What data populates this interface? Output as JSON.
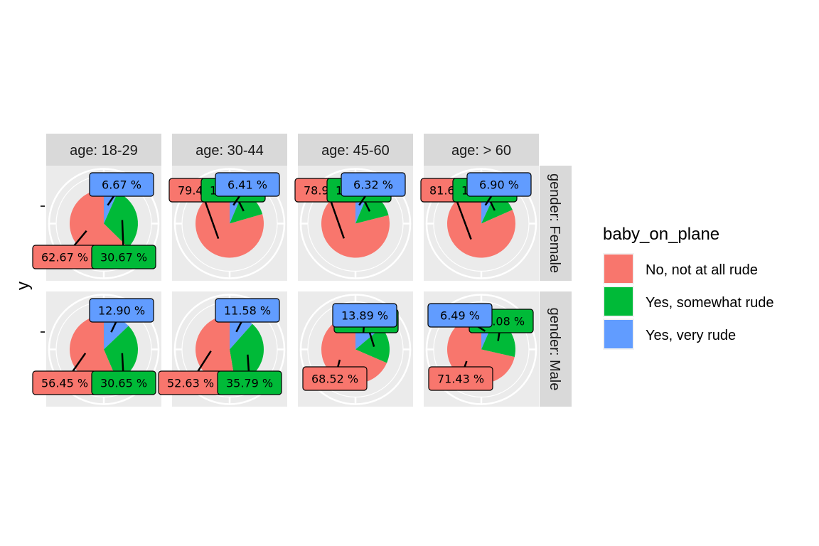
{
  "chart_data": {
    "type": "pie",
    "facet_col_values": [
      "age: 18-29",
      "age: 30-44",
      "age: 45-60",
      "age: > 60"
    ],
    "facet_row_values": [
      "gender: Female",
      "gender: Male"
    ],
    "y_axis_label": "y",
    "legend": {
      "title": "baby_on_plane",
      "entries": [
        "No, not at all rude",
        "Yes, somewhat rude",
        "Yes, very rude"
      ],
      "colors": [
        "#F8766D",
        "#00BA38",
        "#619CFF"
      ],
      "placement": "right"
    },
    "panel_background": "#EBEBEB",
    "strip_background": "#D9D9D9",
    "grid": true,
    "panels": [
      {
        "row": 0,
        "col": 0,
        "values": [
          62.67,
          30.67,
          6.67
        ],
        "labels": [
          "62.67 %",
          "30.67 %",
          "6.67 %"
        ]
      },
      {
        "row": 0,
        "col": 1,
        "values": [
          79.49,
          14.1,
          6.41
        ],
        "labels": [
          "79.49 %",
          "14.10 %",
          "6.41 %"
        ]
      },
      {
        "row": 0,
        "col": 2,
        "values": [
          78.95,
          14.74,
          6.32
        ],
        "labels": [
          "78.95 %",
          "14.74 %",
          "6.32 %"
        ]
      },
      {
        "row": 0,
        "col": 3,
        "values": [
          81.61,
          11.49,
          6.9
        ],
        "labels": [
          "81.61 %",
          "11.49 %",
          "6.90 %"
        ]
      },
      {
        "row": 1,
        "col": 0,
        "values": [
          56.45,
          30.65,
          12.9
        ],
        "labels": [
          "56.45 %",
          "30.65 %",
          "12.90 %"
        ]
      },
      {
        "row": 1,
        "col": 1,
        "values": [
          52.63,
          35.79,
          11.58
        ],
        "labels": [
          "52.63 %",
          "35.79 %",
          "11.58 %"
        ]
      },
      {
        "row": 1,
        "col": 2,
        "values": [
          68.52,
          17.59,
          13.89
        ],
        "labels": [
          "68.52 %",
          "17.59 %",
          "13.89 %"
        ]
      },
      {
        "row": 1,
        "col": 3,
        "values": [
          71.43,
          22.08,
          6.49
        ],
        "labels": [
          "71.43 %",
          "22.08 %",
          "6.49 %"
        ]
      }
    ]
  }
}
